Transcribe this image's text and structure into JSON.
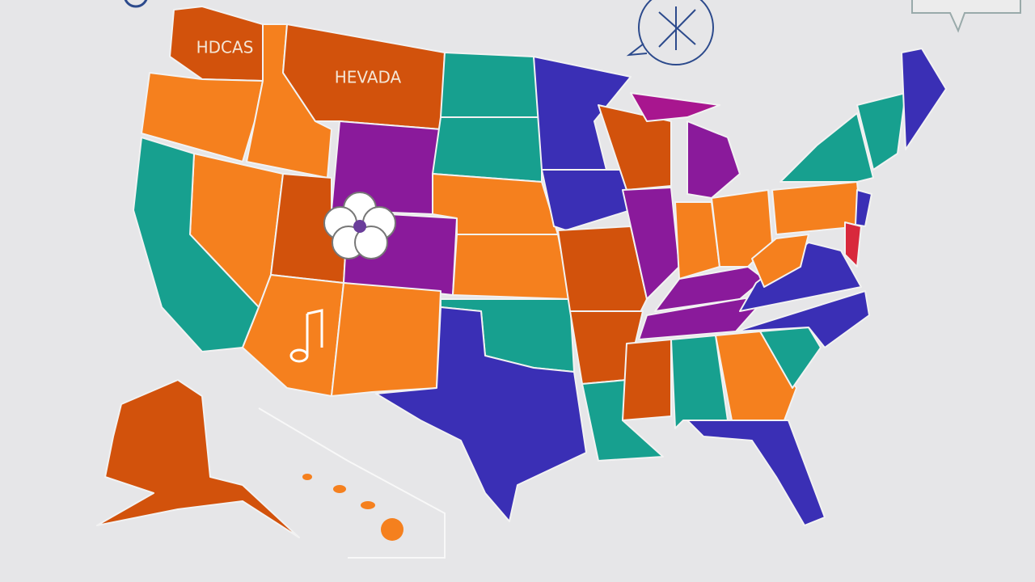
{
  "map": {
    "labels": [
      "HDCAS",
      "HEVADA"
    ]
  }
}
